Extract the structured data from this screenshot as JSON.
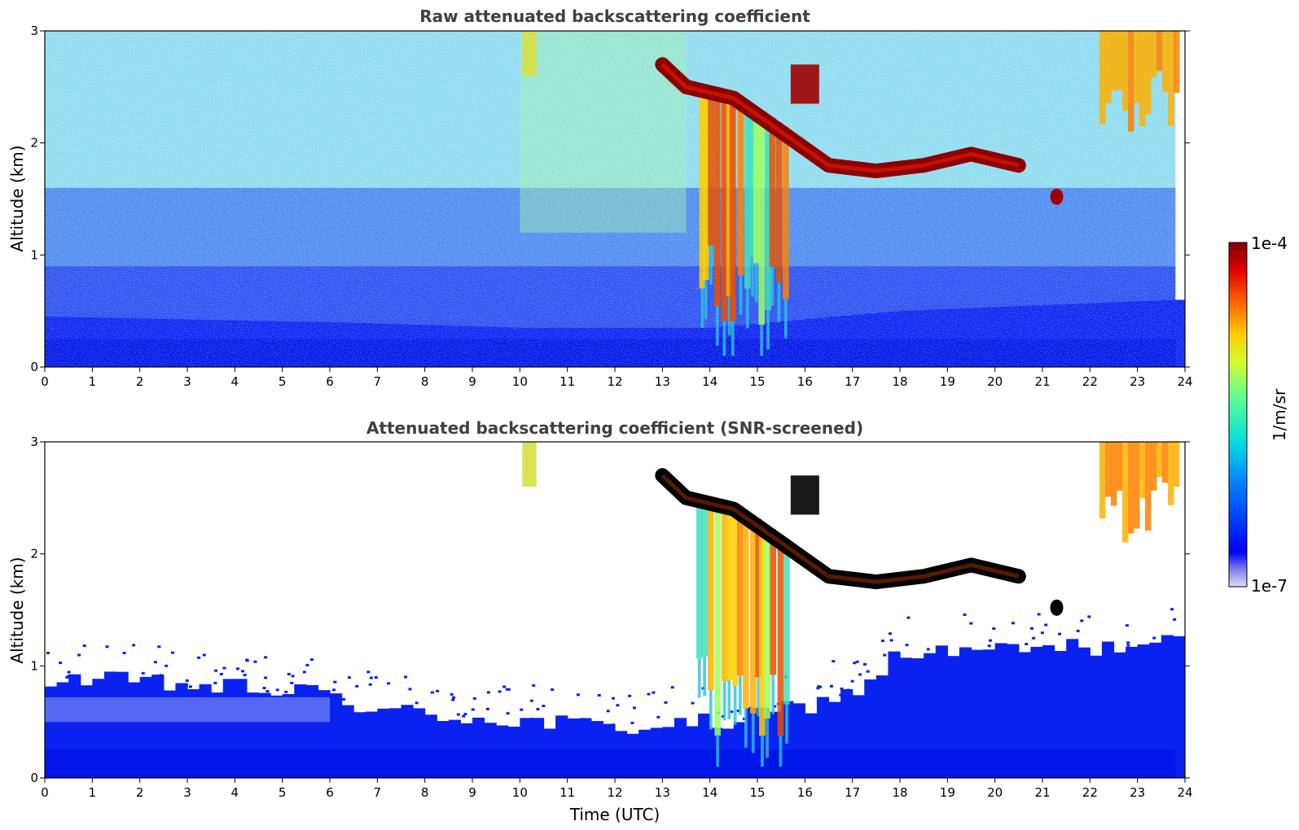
{
  "chart_data": [
    {
      "type": "heatmap",
      "title": "Raw attenuated backscattering coefficient",
      "xlabel": "",
      "ylabel": "Altitude (km)",
      "xlim": [
        0,
        24
      ],
      "ylim": [
        0,
        3
      ],
      "x_ticks": [
        "0",
        "1",
        "2",
        "3",
        "4",
        "5",
        "6",
        "7",
        "8",
        "9",
        "10",
        "11",
        "12",
        "13",
        "14",
        "15",
        "16",
        "17",
        "18",
        "19",
        "20",
        "21",
        "22",
        "23",
        "24"
      ],
      "y_ticks": [
        "0",
        "1",
        "2",
        "3"
      ],
      "screened": false,
      "features": [
        {
          "kind": "boundary_layer",
          "top_km_by_hour": [
            [
              0,
              0.45
            ],
            [
              6,
              0.4
            ],
            [
              10,
              0.35
            ],
            [
              14,
              0.35
            ],
            [
              18,
              0.5
            ],
            [
              23.8,
              0.6
            ]
          ]
        },
        {
          "kind": "cloud_layer",
          "path": [
            [
              13.0,
              2.7
            ],
            [
              13.5,
              2.5
            ],
            [
              14.5,
              2.4
            ],
            [
              15.5,
              2.1
            ],
            [
              16.5,
              1.8
            ],
            [
              17.5,
              1.75
            ],
            [
              18.5,
              1.8
            ],
            [
              19.5,
              1.9
            ],
            [
              20.5,
              1.8
            ]
          ],
          "level": "high"
        },
        {
          "kind": "precipitation",
          "x_from": 13.7,
          "x_to": 15.6,
          "top_km": 2.5,
          "bottom_km": 0.3
        }
      ]
    },
    {
      "type": "heatmap",
      "title": "Attenuated backscattering coefficient (SNR-screened)",
      "xlabel": "Time (UTC)",
      "ylabel": "Altitude (km)",
      "xlim": [
        0,
        24
      ],
      "ylim": [
        0,
        3
      ],
      "x_ticks": [
        "0",
        "1",
        "2",
        "3",
        "4",
        "5",
        "6",
        "7",
        "8",
        "9",
        "10",
        "11",
        "12",
        "13",
        "14",
        "15",
        "16",
        "17",
        "18",
        "19",
        "20",
        "21",
        "22",
        "23",
        "24"
      ],
      "y_ticks": [
        "0",
        "1",
        "2",
        "3"
      ],
      "screened": true,
      "features": [
        {
          "kind": "boundary_layer",
          "top_km_by_hour": [
            [
              0,
              0.9
            ],
            [
              6,
              0.75
            ],
            [
              7,
              0.6
            ],
            [
              12,
              0.45
            ],
            [
              14.5,
              0.5
            ],
            [
              17,
              0.75
            ],
            [
              18,
              1.1
            ],
            [
              23.8,
              1.2
            ]
          ]
        },
        {
          "kind": "cloud_layer",
          "path": [
            [
              13.0,
              2.7
            ],
            [
              13.5,
              2.5
            ],
            [
              14.5,
              2.4
            ],
            [
              15.5,
              2.1
            ],
            [
              16.5,
              1.8
            ],
            [
              17.5,
              1.75
            ],
            [
              18.5,
              1.8
            ],
            [
              19.5,
              1.9
            ],
            [
              20.5,
              1.8
            ]
          ],
          "level": "saturated"
        },
        {
          "kind": "precipitation",
          "x_from": 13.7,
          "x_to": 15.6,
          "top_km": 2.5,
          "bottom_km": 0.3
        }
      ]
    }
  ],
  "colorbar": {
    "max_label": "1e-4",
    "min_label": "1e-7",
    "unit": "1/m/sr",
    "scale": "log",
    "colormap": "jet"
  }
}
